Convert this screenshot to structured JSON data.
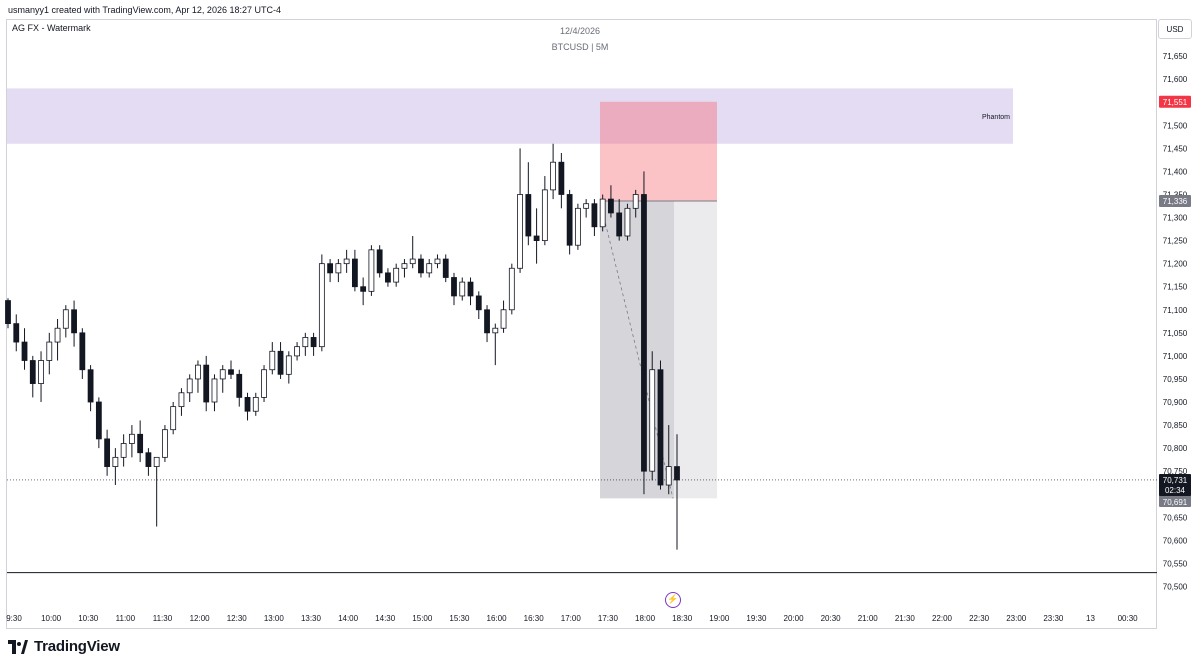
{
  "header": {
    "created_text": "usmanyy1 created with TradingView.com, Apr 12, 2026 18:27 UTC-4",
    "watermark_label": "AG FX - Watermark",
    "date": "12/4/2026",
    "symbol_line": "BTCUSD | 5M",
    "currency": "USD"
  },
  "footer": {
    "logo_text": "TradingView"
  },
  "icons": {
    "event": "lightning-event-icon",
    "logo": "tradingview-logo-icon"
  },
  "chart_data": {
    "type": "candlestick",
    "symbol": "BTCUSD",
    "timeframe": "5M",
    "y_ticks": [
      71650,
      71600,
      71550,
      71500,
      71450,
      71400,
      71350,
      71300,
      71250,
      71200,
      71150,
      71100,
      71050,
      71000,
      70950,
      70900,
      70850,
      70800,
      70750,
      70700,
      70650,
      70600,
      70550,
      70500
    ],
    "y_tick_labels": [
      "71,650",
      "71,600",
      "71,550",
      "71,500",
      "71,450",
      "71,400",
      "71,350",
      "71,300",
      "71,250",
      "71,200",
      "71,150",
      "71,100",
      "71,050",
      "71,000",
      "70,950",
      "70,900",
      "70,850",
      "70,800",
      "70,750",
      "70,700",
      "70,650",
      "70,600",
      "70,550",
      "70,500"
    ],
    "ylim": [
      70475,
      71685
    ],
    "x_tick_labels": [
      "9:30",
      "10:00",
      "10:30",
      "11:00",
      "11:30",
      "12:00",
      "12:30",
      "13:00",
      "13:30",
      "14:00",
      "14:30",
      "15:00",
      "15:30",
      "16:00",
      "16:30",
      "17:00",
      "17:30",
      "18:00",
      "18:30",
      "19:00",
      "19:30",
      "20:00",
      "20:30",
      "21:00",
      "21:30",
      "22:00",
      "22:30",
      "23:00",
      "23:30",
      "13",
      "00:30"
    ],
    "candles": [
      [
        71120,
        71125,
        71060,
        71070
      ],
      [
        71070,
        71090,
        71010,
        71030
      ],
      [
        71030,
        71060,
        70970,
        70990
      ],
      [
        70990,
        71000,
        70910,
        70940
      ],
      [
        70940,
        71010,
        70900,
        70990
      ],
      [
        70990,
        71050,
        70960,
        71030
      ],
      [
        71030,
        71080,
        70990,
        71060
      ],
      [
        71060,
        71110,
        71040,
        71100
      ],
      [
        71100,
        71120,
        71020,
        71050
      ],
      [
        71050,
        71060,
        70950,
        70970
      ],
      [
        70970,
        70980,
        70880,
        70900
      ],
      [
        70900,
        70910,
        70800,
        70820
      ],
      [
        70820,
        70840,
        70740,
        70760
      ],
      [
        70760,
        70800,
        70720,
        70780
      ],
      [
        70780,
        70830,
        70760,
        70810
      ],
      [
        70810,
        70850,
        70780,
        70830
      ],
      [
        70830,
        70860,
        70770,
        70790
      ],
      [
        70790,
        70800,
        70740,
        70760
      ],
      [
        70760,
        70780,
        70630,
        70780
      ],
      [
        70780,
        70850,
        70770,
        70840
      ],
      [
        70840,
        70900,
        70830,
        70890
      ],
      [
        70890,
        70930,
        70870,
        70920
      ],
      [
        70920,
        70960,
        70900,
        70950
      ],
      [
        70950,
        70990,
        70920,
        70980
      ],
      [
        70980,
        71000,
        70880,
        70900
      ],
      [
        70900,
        70960,
        70880,
        70950
      ],
      [
        70950,
        70980,
        70920,
        70970
      ],
      [
        70970,
        70990,
        70950,
        70960
      ],
      [
        70960,
        70970,
        70890,
        70910
      ],
      [
        70910,
        70920,
        70860,
        70880
      ],
      [
        70880,
        70920,
        70870,
        70910
      ],
      [
        70910,
        70980,
        70900,
        70970
      ],
      [
        70970,
        71030,
        70960,
        71010
      ],
      [
        71010,
        71030,
        70950,
        70960
      ],
      [
        70960,
        71010,
        70940,
        71000
      ],
      [
        71000,
        71030,
        70990,
        71020
      ],
      [
        71020,
        71050,
        71000,
        71040
      ],
      [
        71040,
        71050,
        71000,
        71020
      ],
      [
        71020,
        71220,
        71010,
        71200
      ],
      [
        71200,
        71210,
        71160,
        71180
      ],
      [
        71180,
        71210,
        71160,
        71200
      ],
      [
        71200,
        71230,
        71180,
        71210
      ],
      [
        71210,
        71230,
        71140,
        71150
      ],
      [
        71150,
        71170,
        71110,
        71140
      ],
      [
        71140,
        71240,
        71130,
        71230
      ],
      [
        71230,
        71240,
        71170,
        71180
      ],
      [
        71180,
        71190,
        71150,
        71160
      ],
      [
        71160,
        71200,
        71150,
        71190
      ],
      [
        71190,
        71210,
        71170,
        71200
      ],
      [
        71200,
        71260,
        71190,
        71210
      ],
      [
        71210,
        71220,
        71170,
        71180
      ],
      [
        71180,
        71210,
        71170,
        71200
      ],
      [
        71200,
        71220,
        71190,
        71210
      ],
      [
        71210,
        71220,
        71160,
        71170
      ],
      [
        71170,
        71180,
        71110,
        71130
      ],
      [
        71130,
        71170,
        71120,
        71160
      ],
      [
        71160,
        71170,
        71110,
        71130
      ],
      [
        71130,
        71140,
        71080,
        71100
      ],
      [
        71100,
        71110,
        71030,
        71050
      ],
      [
        71050,
        71070,
        70980,
        71060
      ],
      [
        71060,
        71120,
        71050,
        71100
      ],
      [
        71100,
        71200,
        71090,
        71190
      ],
      [
        71190,
        71450,
        71180,
        71350
      ],
      [
        71350,
        71420,
        71240,
        71260
      ],
      [
        71260,
        71320,
        71200,
        71250
      ],
      [
        71250,
        71390,
        71240,
        71360
      ],
      [
        71360,
        71460,
        71340,
        71420
      ],
      [
        71420,
        71440,
        71320,
        71350
      ],
      [
        71350,
        71360,
        71220,
        71240
      ],
      [
        71240,
        71330,
        71230,
        71320
      ],
      [
        71320,
        71340,
        71300,
        71330
      ],
      [
        71330,
        71340,
        71260,
        71280
      ],
      [
        71280,
        71350,
        71270,
        71340
      ],
      [
        71340,
        71370,
        71300,
        71310
      ],
      [
        71310,
        71340,
        71250,
        71260
      ],
      [
        71260,
        71330,
        71250,
        71320
      ],
      [
        71320,
        71360,
        71300,
        71350
      ],
      [
        71350,
        71400,
        70700,
        70750
      ],
      [
        70750,
        71010,
        70730,
        70970
      ],
      [
        70970,
        70990,
        70710,
        70720
      ],
      [
        70720,
        70850,
        70700,
        70760
      ],
      [
        70760,
        70830,
        70580,
        70731
      ]
    ],
    "zones": [
      {
        "name": "Phantom",
        "y_top": 71580,
        "y_bottom": 71460,
        "color": "#9575cd"
      }
    ],
    "position": {
      "entry": 71336,
      "stop": 71551,
      "target": 70691,
      "stop_color": "#f7525f",
      "gray_color": "#787b86"
    },
    "horizontal_line": 70530,
    "current_price": {
      "value": 70731,
      "label": "70,731",
      "countdown": "02:34"
    },
    "price_labels": [
      {
        "label": "71,551",
        "value": 71551,
        "bg": "#f23645",
        "fg": "#ffffff"
      },
      {
        "label": "71,336",
        "value": 71336,
        "bg": "#787b86",
        "fg": "#ffffff"
      },
      {
        "label": "70,691",
        "value": 70691,
        "bg": "#787b86",
        "fg": "#ffffff"
      }
    ]
  }
}
